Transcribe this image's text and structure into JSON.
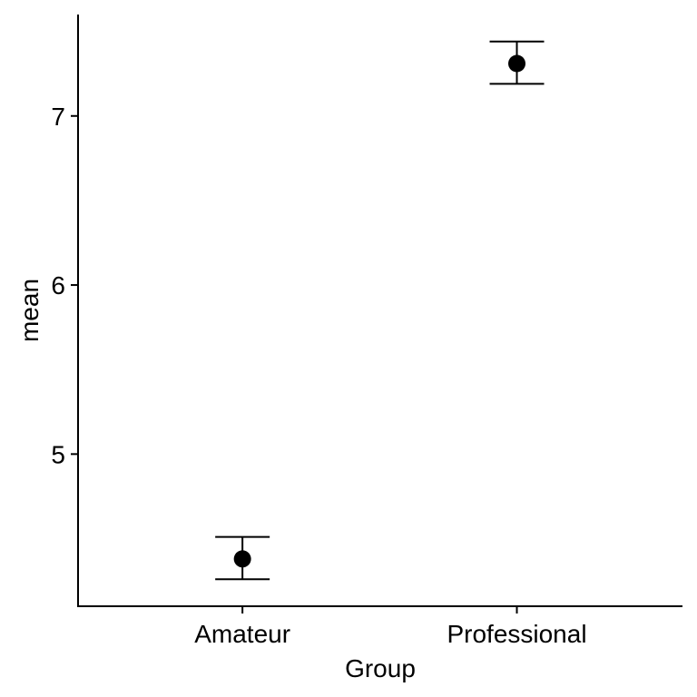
{
  "chart_data": {
    "type": "scatter",
    "title": "",
    "xlabel": "Group",
    "ylabel": "mean",
    "categories": [
      "Amateur",
      "Professional"
    ],
    "series": [
      {
        "values": [
          4.38,
          7.31
        ],
        "error_low": [
          4.26,
          7.19
        ],
        "error_high": [
          4.51,
          7.44
        ]
      }
    ],
    "ylim": [
      4.1,
      7.6
    ],
    "yticks": [
      5,
      6,
      7
    ],
    "grid": false,
    "legend": "none",
    "colors": {
      "point": "#000000",
      "axis": "#000000",
      "background": "#ffffff"
    }
  }
}
